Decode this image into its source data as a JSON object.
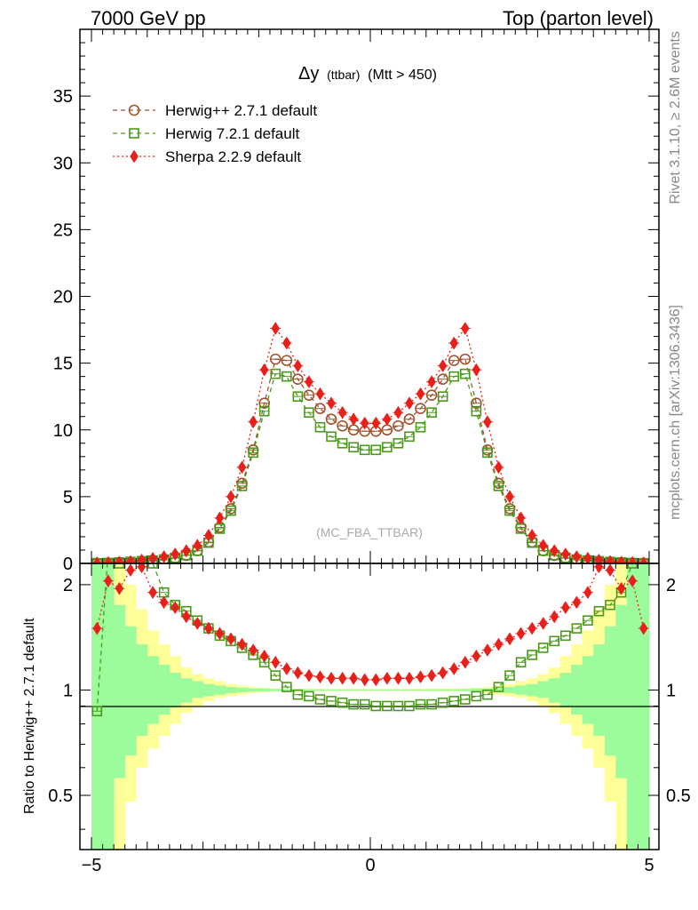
{
  "header": {
    "left": "7000 GeV pp",
    "right": "Top (parton level)"
  },
  "side_labels": {
    "rivet": "Rivet 3.1.10, ≥ 2.6M events",
    "mcplots": "mcplots.cern.ch [arXiv:1306.3436]"
  },
  "chart_data": [
    {
      "panel": "main",
      "type": "line",
      "title": "Δy (ttbar) (Mtt > 450)",
      "title_main": "Δy",
      "title_small": "(ttbar)",
      "title_tail": "(Mtt > 450)",
      "annotation": "(MC_FBA_TTBAR)",
      "xlabel": "",
      "ylabel": "",
      "xlim": [
        -5,
        5
      ],
      "ylim": [
        0,
        40
      ],
      "y_ticks": [
        0,
        5,
        10,
        15,
        20,
        25,
        30,
        35
      ],
      "x": [
        -4.9,
        -4.7,
        -4.5,
        -4.3,
        -4.1,
        -3.9,
        -3.7,
        -3.5,
        -3.3,
        -3.1,
        -2.9,
        -2.7,
        -2.5,
        -2.3,
        -2.1,
        -1.9,
        -1.7,
        -1.5,
        -1.3,
        -1.1,
        -0.9,
        -0.7,
        -0.5,
        -0.3,
        -0.1,
        0.1,
        0.3,
        0.5,
        0.7,
        0.9,
        1.1,
        1.3,
        1.5,
        1.7,
        1.9,
        2.1,
        2.3,
        2.5,
        2.7,
        2.9,
        3.1,
        3.3,
        3.5,
        3.7,
        3.9,
        4.1,
        4.3,
        4.5,
        4.7,
        4.9
      ],
      "legend_position": "top-left",
      "series": [
        {
          "name": "Herwig++ 2.7.1 default",
          "color": "#a0522d",
          "marker": "open-circle",
          "linestyle": "dashed",
          "values": [
            0.02,
            0.03,
            0.05,
            0.08,
            0.12,
            0.18,
            0.28,
            0.4,
            0.6,
            0.95,
            1.6,
            2.7,
            4.1,
            6.0,
            8.5,
            12.0,
            15.3,
            15.2,
            13.8,
            12.6,
            11.6,
            10.8,
            10.3,
            10.0,
            9.9,
            9.9,
            10.0,
            10.3,
            10.8,
            11.6,
            12.6,
            13.8,
            15.2,
            15.3,
            12.0,
            8.5,
            6.0,
            4.1,
            2.7,
            1.6,
            0.95,
            0.6,
            0.4,
            0.28,
            0.18,
            0.12,
            0.08,
            0.05,
            0.03,
            0.02
          ]
        },
        {
          "name": "Herwig 7.2.1 default",
          "color": "#4a9a1a",
          "marker": "open-square",
          "linestyle": "dashed",
          "values": [
            0.02,
            0.04,
            0.08,
            0.12,
            0.17,
            0.22,
            0.3,
            0.42,
            0.62,
            0.95,
            1.55,
            2.6,
            3.95,
            5.8,
            8.3,
            11.4,
            14.2,
            14.0,
            12.5,
            11.3,
            10.2,
            9.5,
            9.0,
            8.7,
            8.5,
            8.5,
            8.7,
            9.0,
            9.5,
            10.2,
            11.3,
            12.5,
            14.0,
            14.2,
            11.4,
            8.3,
            5.8,
            3.95,
            2.6,
            1.55,
            0.95,
            0.62,
            0.42,
            0.3,
            0.22,
            0.17,
            0.12,
            0.08,
            0.04,
            0.02
          ]
        },
        {
          "name": "Sherpa 2.2.9 default",
          "color": "#e8201a",
          "marker": "filled-diamond",
          "linestyle": "dotted",
          "values": [
            0.03,
            0.06,
            0.09,
            0.14,
            0.24,
            0.38,
            0.5,
            0.7,
            0.95,
            1.35,
            2.1,
            3.4,
            5.0,
            7.2,
            10.6,
            14.5,
            17.6,
            16.5,
            14.8,
            13.6,
            12.7,
            12.0,
            11.3,
            10.8,
            10.5,
            10.5,
            10.8,
            11.3,
            12.0,
            12.7,
            13.6,
            14.8,
            16.5,
            17.6,
            14.5,
            10.6,
            7.2,
            5.0,
            3.4,
            2.1,
            1.35,
            0.95,
            0.7,
            0.5,
            0.38,
            0.24,
            0.14,
            0.09,
            0.06,
            0.03
          ]
        }
      ]
    },
    {
      "panel": "ratio",
      "type": "line",
      "ylabel": "Ratio to Herwig++ 2.7.1 default",
      "xlim": [
        -5,
        5
      ],
      "ylim": [
        0.35,
        2.3
      ],
      "y_scale": "log",
      "y_ticks": [
        0.5,
        1,
        2
      ],
      "x_ticks": [
        -5,
        0,
        5
      ],
      "x": [
        -4.9,
        -4.7,
        -4.5,
        -4.3,
        -4.1,
        -3.9,
        -3.7,
        -3.5,
        -3.3,
        -3.1,
        -2.9,
        -2.7,
        -2.5,
        -2.3,
        -2.1,
        -1.9,
        -1.7,
        -1.5,
        -1.3,
        -1.1,
        -0.9,
        -0.7,
        -0.5,
        -0.3,
        -0.1,
        0.1,
        0.3,
        0.5,
        0.7,
        0.9,
        1.1,
        1.3,
        1.5,
        1.7,
        1.9,
        2.1,
        2.3,
        2.5,
        2.7,
        2.9,
        3.1,
        3.3,
        3.5,
        3.7,
        3.9,
        4.1,
        4.3,
        4.5,
        4.7,
        4.9
      ],
      "reference": 1,
      "band_green": [
        [
          0.35,
          2.3
        ],
        [
          0.35,
          2.3
        ],
        [
          0.56,
          1.75
        ],
        [
          0.65,
          1.52
        ],
        [
          0.74,
          1.35
        ],
        [
          0.8,
          1.25
        ],
        [
          0.85,
          1.18
        ],
        [
          0.89,
          1.12
        ],
        [
          0.92,
          1.08
        ],
        [
          0.95,
          1.06
        ],
        [
          0.96,
          1.04
        ],
        [
          0.97,
          1.03
        ],
        [
          0.98,
          1.02
        ],
        [
          0.985,
          1.015
        ],
        [
          0.99,
          1.01
        ],
        [
          0.99,
          1.01
        ],
        [
          0.993,
          1.007
        ],
        [
          0.995,
          1.005
        ],
        [
          0.995,
          1.005
        ],
        [
          0.995,
          1.005
        ],
        [
          0.996,
          1.004
        ],
        [
          0.996,
          1.004
        ],
        [
          0.996,
          1.004
        ],
        [
          0.996,
          1.004
        ],
        [
          0.996,
          1.004
        ],
        [
          0.996,
          1.004
        ],
        [
          0.996,
          1.004
        ],
        [
          0.996,
          1.004
        ],
        [
          0.996,
          1.004
        ],
        [
          0.996,
          1.004
        ],
        [
          0.995,
          1.005
        ],
        [
          0.995,
          1.005
        ],
        [
          0.995,
          1.005
        ],
        [
          0.993,
          1.007
        ],
        [
          0.99,
          1.01
        ],
        [
          0.99,
          1.01
        ],
        [
          0.985,
          1.015
        ],
        [
          0.98,
          1.02
        ],
        [
          0.97,
          1.03
        ],
        [
          0.96,
          1.04
        ],
        [
          0.95,
          1.06
        ],
        [
          0.92,
          1.08
        ],
        [
          0.89,
          1.12
        ],
        [
          0.85,
          1.18
        ],
        [
          0.8,
          1.25
        ],
        [
          0.74,
          1.35
        ],
        [
          0.65,
          1.52
        ],
        [
          0.56,
          1.75
        ],
        [
          0.35,
          2.3
        ],
        [
          0.35,
          2.3
        ]
      ],
      "band_yellow": [
        [
          0.35,
          2.3
        ],
        [
          0.35,
          2.3
        ],
        [
          0.35,
          2.3
        ],
        [
          0.48,
          2.0
        ],
        [
          0.6,
          1.7
        ],
        [
          0.68,
          1.48
        ],
        [
          0.74,
          1.35
        ],
        [
          0.8,
          1.25
        ],
        [
          0.86,
          1.16
        ],
        [
          0.9,
          1.11
        ],
        [
          0.93,
          1.08
        ],
        [
          0.95,
          1.06
        ],
        [
          0.96,
          1.04
        ],
        [
          0.97,
          1.03
        ],
        [
          0.98,
          1.02
        ],
        [
          0.985,
          1.015
        ],
        [
          0.99,
          1.01
        ],
        [
          0.99,
          1.01
        ],
        [
          0.99,
          1.01
        ],
        [
          0.992,
          1.008
        ],
        [
          0.992,
          1.008
        ],
        [
          0.993,
          1.007
        ],
        [
          0.993,
          1.007
        ],
        [
          0.993,
          1.007
        ],
        [
          0.993,
          1.007
        ],
        [
          0.993,
          1.007
        ],
        [
          0.993,
          1.007
        ],
        [
          0.993,
          1.007
        ],
        [
          0.993,
          1.007
        ],
        [
          0.992,
          1.008
        ],
        [
          0.992,
          1.008
        ],
        [
          0.99,
          1.01
        ],
        [
          0.99,
          1.01
        ],
        [
          0.99,
          1.01
        ],
        [
          0.985,
          1.015
        ],
        [
          0.98,
          1.02
        ],
        [
          0.97,
          1.03
        ],
        [
          0.96,
          1.04
        ],
        [
          0.95,
          1.06
        ],
        [
          0.93,
          1.08
        ],
        [
          0.9,
          1.11
        ],
        [
          0.86,
          1.16
        ],
        [
          0.8,
          1.25
        ],
        [
          0.74,
          1.35
        ],
        [
          0.68,
          1.48
        ],
        [
          0.6,
          1.7
        ],
        [
          0.48,
          2.0
        ],
        [
          0.35,
          2.3
        ],
        [
          0.35,
          2.3
        ],
        [
          0.35,
          2.3
        ]
      ],
      "series": [
        {
          "name": "Herwig 7.2.1 / Herwig++ 2.7.1",
          "color": "#4a9a1a",
          "marker": "open-square",
          "linestyle": "dashed",
          "values": [
            0.87,
            2.5,
            2.3,
            2.8,
            2.5,
            2.3,
            1.9,
            1.75,
            1.68,
            1.58,
            1.5,
            1.43,
            1.38,
            1.32,
            1.26,
            1.2,
            1.1,
            1.02,
            0.97,
            0.96,
            0.94,
            0.93,
            0.92,
            0.91,
            0.91,
            0.9,
            0.9,
            0.9,
            0.9,
            0.91,
            0.91,
            0.92,
            0.93,
            0.94,
            0.96,
            0.97,
            1.02,
            1.1,
            1.2,
            1.26,
            1.32,
            1.38,
            1.43,
            1.5,
            1.58,
            1.68,
            1.75,
            1.9,
            2.3,
            2.5
          ]
        },
        {
          "name": "Sherpa 2.2.9 / Herwig++ 2.7.1",
          "color": "#e8201a",
          "marker": "filled-diamond",
          "linestyle": "dotted",
          "values": [
            1.5,
            2.05,
            1.95,
            2.2,
            2.25,
            1.9,
            1.78,
            1.72,
            1.62,
            1.55,
            1.5,
            1.45,
            1.4,
            1.35,
            1.3,
            1.25,
            1.2,
            1.15,
            1.12,
            1.1,
            1.09,
            1.08,
            1.08,
            1.08,
            1.07,
            1.07,
            1.08,
            1.08,
            1.08,
            1.09,
            1.1,
            1.12,
            1.15,
            1.2,
            1.25,
            1.3,
            1.35,
            1.4,
            1.45,
            1.5,
            1.55,
            1.62,
            1.72,
            1.78,
            1.9,
            2.25,
            2.2,
            1.95,
            2.05,
            1.5
          ]
        }
      ]
    }
  ]
}
